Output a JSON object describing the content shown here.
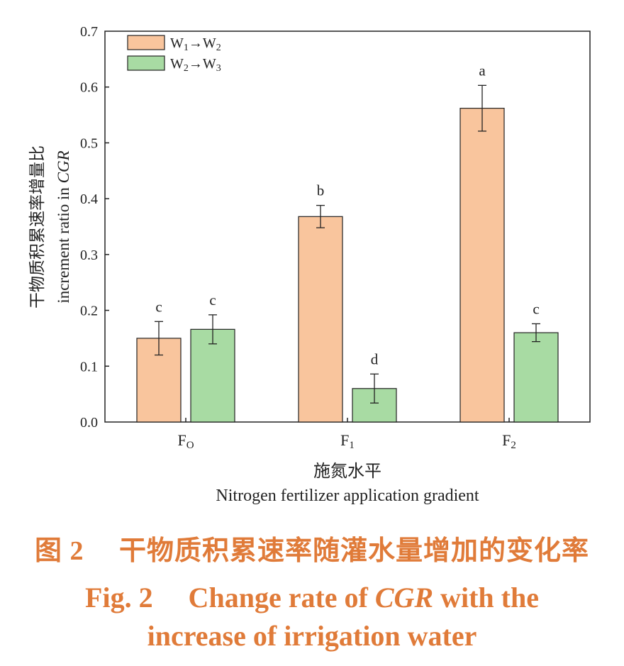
{
  "chart_data": {
    "type": "bar",
    "categories": [
      "F",
      "F",
      "F"
    ],
    "category_subscripts": [
      "O",
      "1",
      "2"
    ],
    "series": [
      {
        "name": "W",
        "name_parts": [
          "W",
          "1",
          "→W",
          "2"
        ],
        "values": [
          0.15,
          0.368,
          0.562
        ],
        "errors": [
          0.03,
          0.02,
          0.041
        ],
        "labels": [
          "c",
          "b",
          "a"
        ],
        "color": "#f9c59d"
      },
      {
        "name": "W",
        "name_parts": [
          "W",
          "2",
          "→W",
          "3"
        ],
        "values": [
          0.166,
          0.06,
          0.16
        ],
        "errors": [
          0.026,
          0.026,
          0.016
        ],
        "labels": [
          "c",
          "d",
          "c"
        ],
        "color": "#a8dba3"
      }
    ],
    "y_ticks": [
      "0.0",
      "0.1",
      "0.2",
      "0.3",
      "0.4",
      "0.5",
      "0.6",
      "0.7"
    ],
    "ylim": [
      0,
      0.7
    ],
    "ylabel_cn": "干物质积累速率增量比",
    "ylabel_en_prefix": "increment ratio in ",
    "ylabel_en_italic": "CGR",
    "xlabel_cn": "施氮水平",
    "xlabel_en": "Nitrogen fertilizer application gradient",
    "legend_position": "top-left",
    "grid": false
  },
  "caption": {
    "cn": "图 2　 干物质积累速率随灌水量增加的变化率",
    "en_prefix": "Fig. 2　 Change rate of ",
    "en_italic": "CGR",
    "en_suffix": " with the",
    "en_line2": "increase of irrigation water"
  }
}
